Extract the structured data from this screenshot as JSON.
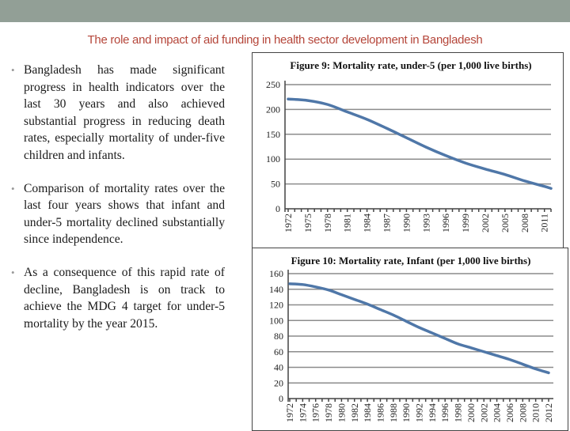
{
  "slide": {
    "title": "The role and impact of aid funding in health sector development in Bangladesh",
    "bullets": [
      "Bangladesh has made significant progress in health indicators over the last 30 years and also achieved substantial progress in reducing death rates, especially mortality of under-five children and infants.",
      "Comparison of mortality rates over the last four years shows that infant and under-5 mortality declined substantially since independence.",
      "As a consequence of this rapid rate of decline, Bangladesh is on track to achieve the MDG 4 target for under-5 mortality by the year 2015."
    ]
  },
  "colors": {
    "top_band": "#929f96",
    "title": "#b5463a",
    "line": "#4f77a8",
    "grid": "#8c8c8c"
  },
  "chart_data": [
    {
      "type": "line",
      "title": "Figure 9: Mortality rate, under-5 (per 1,000 live births)",
      "xlabel": "",
      "ylabel": "",
      "ylim": [
        0,
        250
      ],
      "yticks": [
        "0",
        "50",
        "100",
        "150",
        "200",
        "250"
      ],
      "xticks": [
        "1972",
        "1975",
        "1978",
        "1981",
        "1984",
        "1987",
        "1990",
        "1993",
        "1996",
        "1999",
        "2002",
        "2005",
        "2008",
        "2011"
      ],
      "grid": true,
      "x": [
        1972,
        1975,
        1978,
        1981,
        1984,
        1987,
        1990,
        1993,
        1996,
        1999,
        2002,
        2005,
        2008,
        2011,
        2012
      ],
      "values": [
        221,
        218,
        210,
        195,
        180,
        162,
        143,
        124,
        107,
        92,
        80,
        69,
        56,
        45,
        41
      ]
    },
    {
      "type": "line",
      "title": "Figure 10: Mortality rate, Infant (per 1,000 live births)",
      "xlabel": "",
      "ylabel": "",
      "ylim": [
        0,
        160
      ],
      "yticks": [
        "0",
        "20",
        "40",
        "60",
        "80",
        "100",
        "120",
        "140",
        "160"
      ],
      "xticks": [
        "1972",
        "1974",
        "1976",
        "1978",
        "1980",
        "1982",
        "1984",
        "1986",
        "1988",
        "1990",
        "1992",
        "1994",
        "1996",
        "1998",
        "2000",
        "2002",
        "2004",
        "2006",
        "2008",
        "2010",
        "2012"
      ],
      "grid": true,
      "x": [
        1972,
        1974,
        1976,
        1978,
        1980,
        1982,
        1984,
        1986,
        1988,
        1990,
        1992,
        1994,
        1996,
        1998,
        2000,
        2002,
        2004,
        2006,
        2008,
        2010,
        2012
      ],
      "values": [
        147,
        146,
        143,
        139,
        133,
        127,
        121,
        114,
        107,
        99,
        91,
        84,
        77,
        70,
        65,
        60,
        55,
        50,
        44,
        38,
        33
      ]
    }
  ]
}
